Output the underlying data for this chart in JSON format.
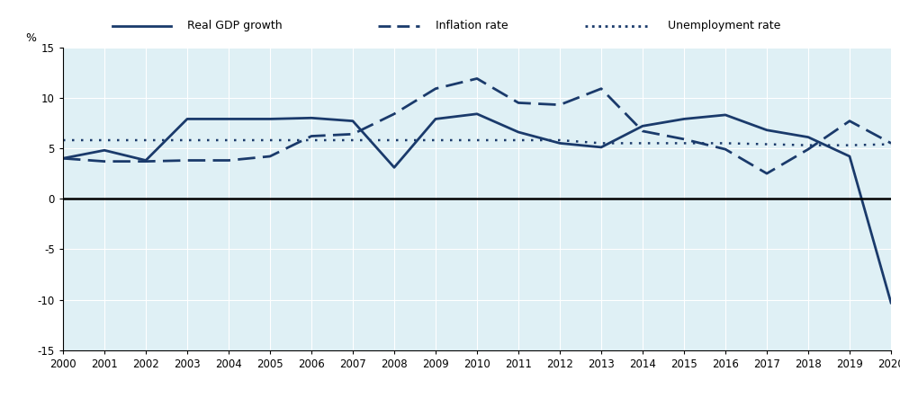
{
  "years": [
    2000,
    2001,
    2002,
    2003,
    2004,
    2005,
    2006,
    2007,
    2008,
    2009,
    2010,
    2011,
    2012,
    2013,
    2014,
    2015,
    2016,
    2017,
    2018,
    2019,
    2020
  ],
  "gdp_growth": [
    4.0,
    4.8,
    3.8,
    7.9,
    7.9,
    7.9,
    8.0,
    7.7,
    3.1,
    7.9,
    8.4,
    6.6,
    5.5,
    5.1,
    7.2,
    7.9,
    8.3,
    6.8,
    6.1,
    4.2,
    -10.3
  ],
  "inflation_rate": [
    4.0,
    3.7,
    3.7,
    3.8,
    3.8,
    4.2,
    6.2,
    6.4,
    8.4,
    10.9,
    11.9,
    9.5,
    9.3,
    10.9,
    6.7,
    5.9,
    4.9,
    2.5,
    4.9,
    7.7,
    5.5
  ],
  "unemployment_rate": [
    5.8,
    5.8,
    5.8,
    5.8,
    5.8,
    5.8,
    5.8,
    5.8,
    5.8,
    5.8,
    5.8,
    5.8,
    5.8,
    5.5,
    5.5,
    5.5,
    5.5,
    5.4,
    5.3,
    5.3,
    5.4
  ],
  "line_color": "#1a3a6b",
  "bg_color": "#dff0f5",
  "legend_bg": "#d0d0d0",
  "ylim": [
    -15,
    15
  ],
  "yticks": [
    -15,
    -10,
    -5,
    0,
    5,
    10,
    15
  ],
  "ylabel": "%",
  "legend_labels": [
    "Real GDP growth",
    "Inflation rate",
    "Unemployment rate"
  ]
}
